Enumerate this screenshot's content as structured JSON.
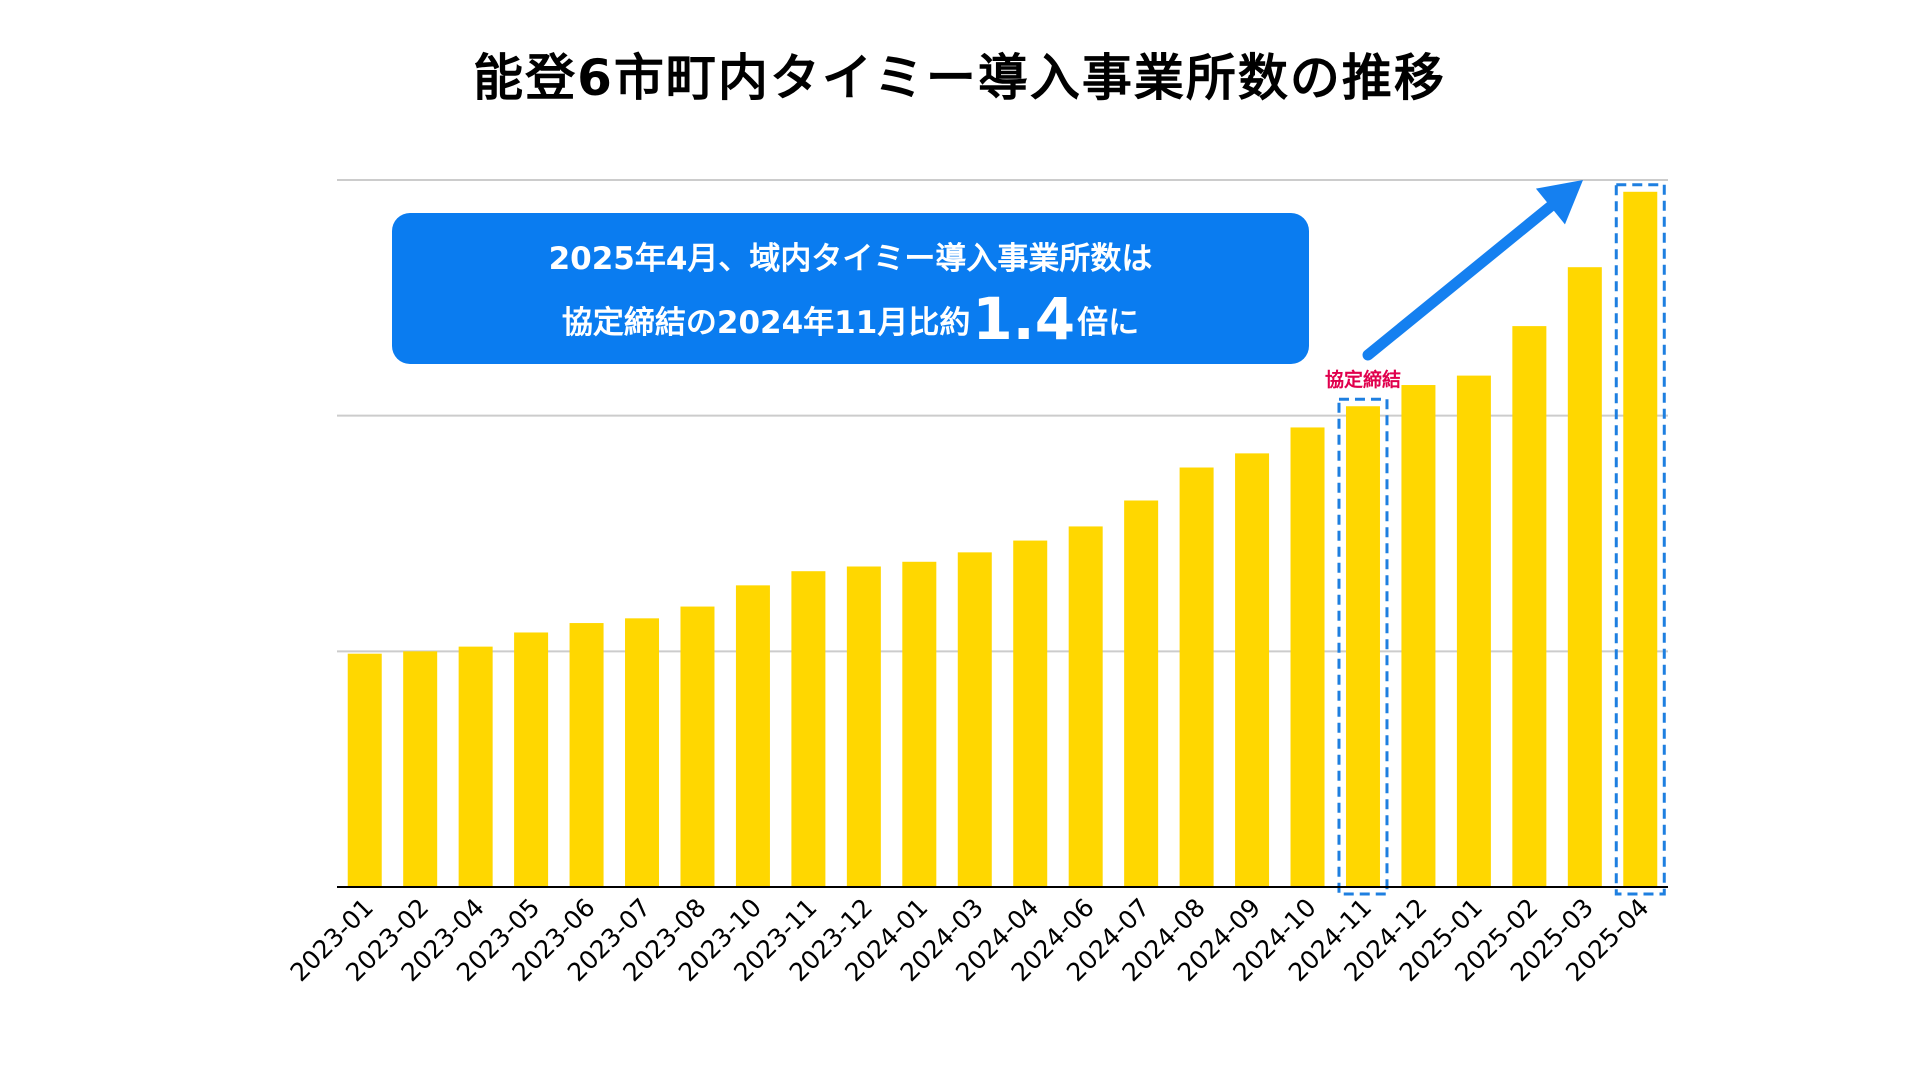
{
  "title": "能登6市町内タイミー導入事業所数の推移",
  "callout": {
    "line1": "2025年4月、域内タイミー導入事業所数は",
    "line2_prefix": "協定締結の2024年11月比約",
    "line2_value": "1.4",
    "line2_suffix": "倍に"
  },
  "colors": {
    "bar": "#FFD700",
    "highlight_box": "#1E7FE0",
    "callout_bg": "#0A7CF0",
    "arrow": "#1580F0",
    "annotation_text": "#E0004D",
    "grid": "#CCCCCC",
    "axis": "#000000"
  },
  "chart_data": {
    "type": "bar",
    "title": "能登6市町内タイミー導入事業所数の推移",
    "categories": [
      "2023-01",
      "2023-02",
      "2023-04",
      "2023-05",
      "2023-06",
      "2023-07",
      "2023-08",
      "2023-10",
      "2023-11",
      "2023-12",
      "2024-01",
      "2024-03",
      "2024-04",
      "2024-06",
      "2024-07",
      "2024-08",
      "2024-09",
      "2024-10",
      "2024-11",
      "2024-12",
      "2025-01",
      "2025-02",
      "2025-03",
      "2025-04"
    ],
    "values": [
      0.99,
      1.0,
      1.02,
      1.08,
      1.12,
      1.14,
      1.19,
      1.28,
      1.34,
      1.36,
      1.38,
      1.42,
      1.47,
      1.53,
      1.64,
      1.78,
      1.84,
      1.95,
      2.04,
      2.13,
      2.17,
      2.38,
      2.63,
      2.95
    ],
    "ylim": [
      0,
      3.0
    ],
    "y_unit": "relative (2024-11 ≈ 2.04)",
    "grid": true,
    "xlabel": "",
    "ylabel": "",
    "highlighted": [
      "2024-11",
      "2025-04"
    ],
    "annotations": [
      {
        "category": "2024-11",
        "text": "協定締結"
      }
    ]
  }
}
